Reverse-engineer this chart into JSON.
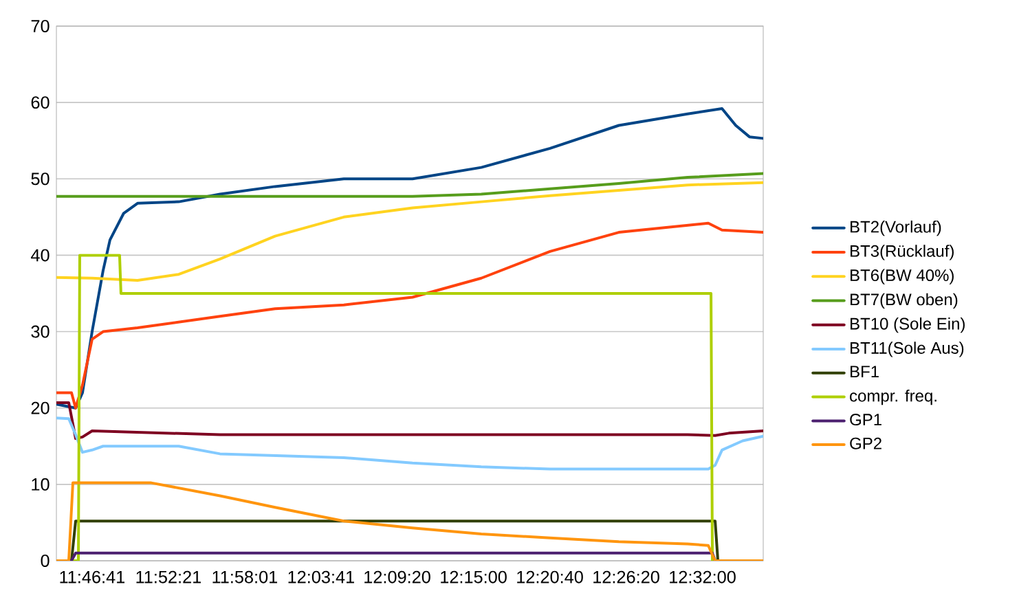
{
  "chart_data": {
    "type": "line",
    "xlim": [
      11.7339,
      12.6086
    ],
    "ylim": [
      0,
      70
    ],
    "xticks": [
      {
        "value": 11.778056,
        "label": "11:46:41"
      },
      {
        "value": 11.8725,
        "label": "11:52:21"
      },
      {
        "value": 11.966944,
        "label": "11:58:01"
      },
      {
        "value": 12.061389,
        "label": "12:03:41"
      },
      {
        "value": 12.155556,
        "label": "12:09:20"
      },
      {
        "value": 12.25,
        "label": "12:15:00"
      },
      {
        "value": 12.344444,
        "label": "12:20:40"
      },
      {
        "value": 12.438889,
        "label": "12:26:20"
      },
      {
        "value": 12.533333,
        "label": "12:32:00"
      }
    ],
    "yticks": [
      0,
      10,
      20,
      30,
      40,
      50,
      60,
      70
    ],
    "grid": "y",
    "legend": "right",
    "marker": "none",
    "line_style": "solid",
    "series": [
      {
        "name": "BT2(Vorlauf)",
        "color": "#004586",
        "x": [
          11.7339,
          11.7577,
          11.7662,
          11.7781,
          11.7917,
          11.8002,
          11.8172,
          11.8343,
          11.8853,
          11.9364,
          12.0045,
          12.0896,
          12.1746,
          12.2597,
          12.3448,
          12.4299,
          12.515,
          12.5576,
          12.5746,
          12.5916,
          12.6086
        ],
        "values": [
          20.5,
          20,
          22,
          30,
          38,
          42,
          45.5,
          46.8,
          47,
          48,
          49,
          50,
          50,
          51.5,
          54,
          57,
          58.5,
          59.2,
          57,
          55.5,
          55.3
        ]
      },
      {
        "name": "BT3(Rücklauf)",
        "color": "#ff420e",
        "x": [
          11.7339,
          11.7526,
          11.7577,
          11.7662,
          11.7781,
          11.7917,
          11.8343,
          11.9364,
          12.0045,
          12.0896,
          12.1746,
          12.2597,
          12.3448,
          12.4299,
          12.5406,
          12.5576,
          12.6086
        ],
        "values": [
          22,
          22,
          20,
          23,
          29,
          30,
          30.5,
          32,
          33,
          33.5,
          34.5,
          37,
          40.5,
          43,
          44.2,
          43.3,
          43
        ]
      },
      {
        "name": "BT6(BW 40%)",
        "color": "#ffd320",
        "x": [
          11.7339,
          11.7781,
          11.8343,
          11.8853,
          11.9364,
          12.0045,
          12.0896,
          12.1746,
          12.2597,
          12.3448,
          12.4299,
          12.515,
          12.6086
        ],
        "values": [
          37.1,
          37,
          36.7,
          37.5,
          39.5,
          42.5,
          45,
          46.2,
          47,
          47.8,
          48.5,
          49.2,
          49.5
        ]
      },
      {
        "name": "BT7(BW oben)",
        "color": "#579d1c",
        "x": [
          11.7339,
          12.1746,
          12.2597,
          12.3448,
          12.4299,
          12.515,
          12.6086
        ],
        "values": [
          47.7,
          47.7,
          48,
          48.7,
          49.4,
          50.2,
          50.7
        ]
      },
      {
        "name": "BT10 (Sole Ein)",
        "color": "#7e0021",
        "x": [
          11.7339,
          11.7492,
          11.7577,
          11.7662,
          11.7781,
          11.9364,
          12.515,
          12.5491,
          12.5661,
          12.6086
        ],
        "values": [
          20.7,
          20.7,
          16,
          16.2,
          17,
          16.5,
          16.5,
          16.4,
          16.7,
          17
        ]
      },
      {
        "name": "BT11(Sole Aus)",
        "color": "#83caff",
        "x": [
          11.7339,
          11.7492,
          11.7577,
          11.7662,
          11.7781,
          11.7917,
          11.8853,
          11.9364,
          12.0896,
          12.1746,
          12.2597,
          12.3448,
          12.515,
          12.5406,
          12.5491,
          12.5576,
          12.5831,
          12.6086
        ],
        "values": [
          18.7,
          18.6,
          16.5,
          14.2,
          14.5,
          15,
          15,
          14,
          13.5,
          12.8,
          12.3,
          12,
          12,
          12,
          12.5,
          14.5,
          15.7,
          16.3
        ]
      },
      {
        "name": "BF1",
        "color": "#314004",
        "x": [
          11.7339,
          11.7526,
          11.7577,
          12.5491,
          12.5525,
          12.6086
        ],
        "values": [
          0,
          0,
          5.2,
          5.2,
          0,
          0
        ]
      },
      {
        "name": "compr. freq.",
        "color": "#aecf00",
        "x": [
          11.7339,
          11.7611,
          11.7628,
          11.8121,
          11.8138,
          12.544,
          12.5457,
          12.6086
        ],
        "values": [
          0,
          0,
          40,
          40,
          35,
          35,
          0,
          0
        ]
      },
      {
        "name": "GP1",
        "color": "#4b1f6f",
        "x": [
          11.7339,
          11.7526,
          11.7577,
          12.5457,
          12.5491,
          12.6086
        ],
        "values": [
          0,
          0,
          1,
          1,
          0,
          0
        ]
      },
      {
        "name": "GP2",
        "color": "#ff950e",
        "x": [
          11.7339,
          11.7492,
          11.7543,
          11.8513,
          11.9364,
          12.0045,
          12.0896,
          12.1746,
          12.2597,
          12.3448,
          12.4299,
          12.515,
          12.5406,
          12.5491,
          12.6086
        ],
        "values": [
          0,
          0,
          10.2,
          10.2,
          8.5,
          7,
          5.2,
          4.3,
          3.5,
          3,
          2.5,
          2.2,
          2,
          0,
          0
        ]
      }
    ]
  }
}
